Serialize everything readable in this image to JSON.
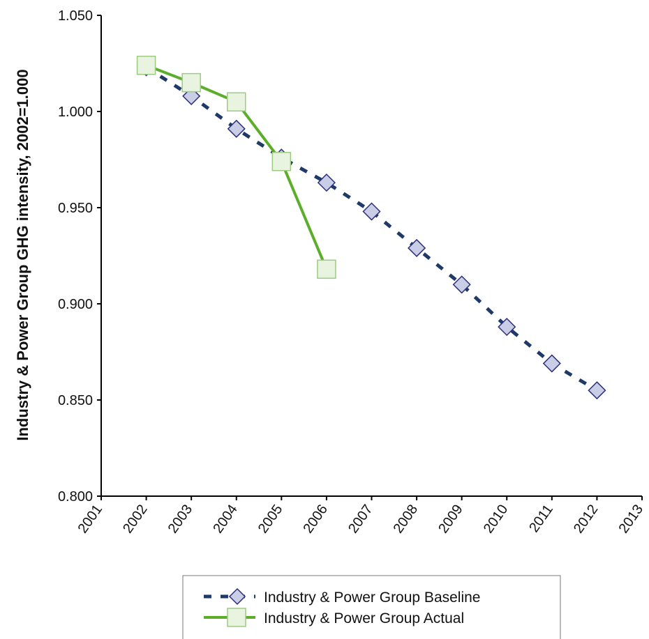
{
  "chart_data": {
    "type": "line",
    "title": "",
    "xlabel": "",
    "ylabel": "Industry & Power Group GHG intensity, 2002=1.000",
    "xlim": [
      2001,
      2013
    ],
    "ylim": [
      0.8,
      1.05
    ],
    "x_ticks": [
      "2001",
      "2002",
      "2003",
      "2004",
      "2005",
      "2006",
      "2007",
      "2008",
      "2009",
      "2010",
      "2011",
      "2012",
      "2013"
    ],
    "y_ticks": [
      "0.800",
      "0.850",
      "0.900",
      "0.950",
      "1.000",
      "1.050"
    ],
    "grid": false,
    "legend_position": "bottom",
    "series": [
      {
        "name": "Industry & Power Group Baseline",
        "style": "dashed",
        "marker": "diamond",
        "color": "#1f3a68",
        "marker_fill": "#c9cde6",
        "marker_stroke": "#2b2f7a",
        "x": [
          2002,
          2003,
          2004,
          2005,
          2006,
          2007,
          2008,
          2009,
          2010,
          2011,
          2012
        ],
        "values": [
          1.023,
          1.008,
          0.991,
          0.976,
          0.963,
          0.948,
          0.929,
          0.91,
          0.888,
          0.869,
          0.855
        ]
      },
      {
        "name": "Industry & Power Group Actual",
        "style": "solid",
        "marker": "square",
        "color": "#5cae2a",
        "marker_fill": "#e8f4e0",
        "marker_stroke": "#9ccb80",
        "x": [
          2002,
          2003,
          2004,
          2005,
          2006
        ],
        "values": [
          1.024,
          1.015,
          1.005,
          0.974,
          0.918
        ]
      }
    ]
  }
}
